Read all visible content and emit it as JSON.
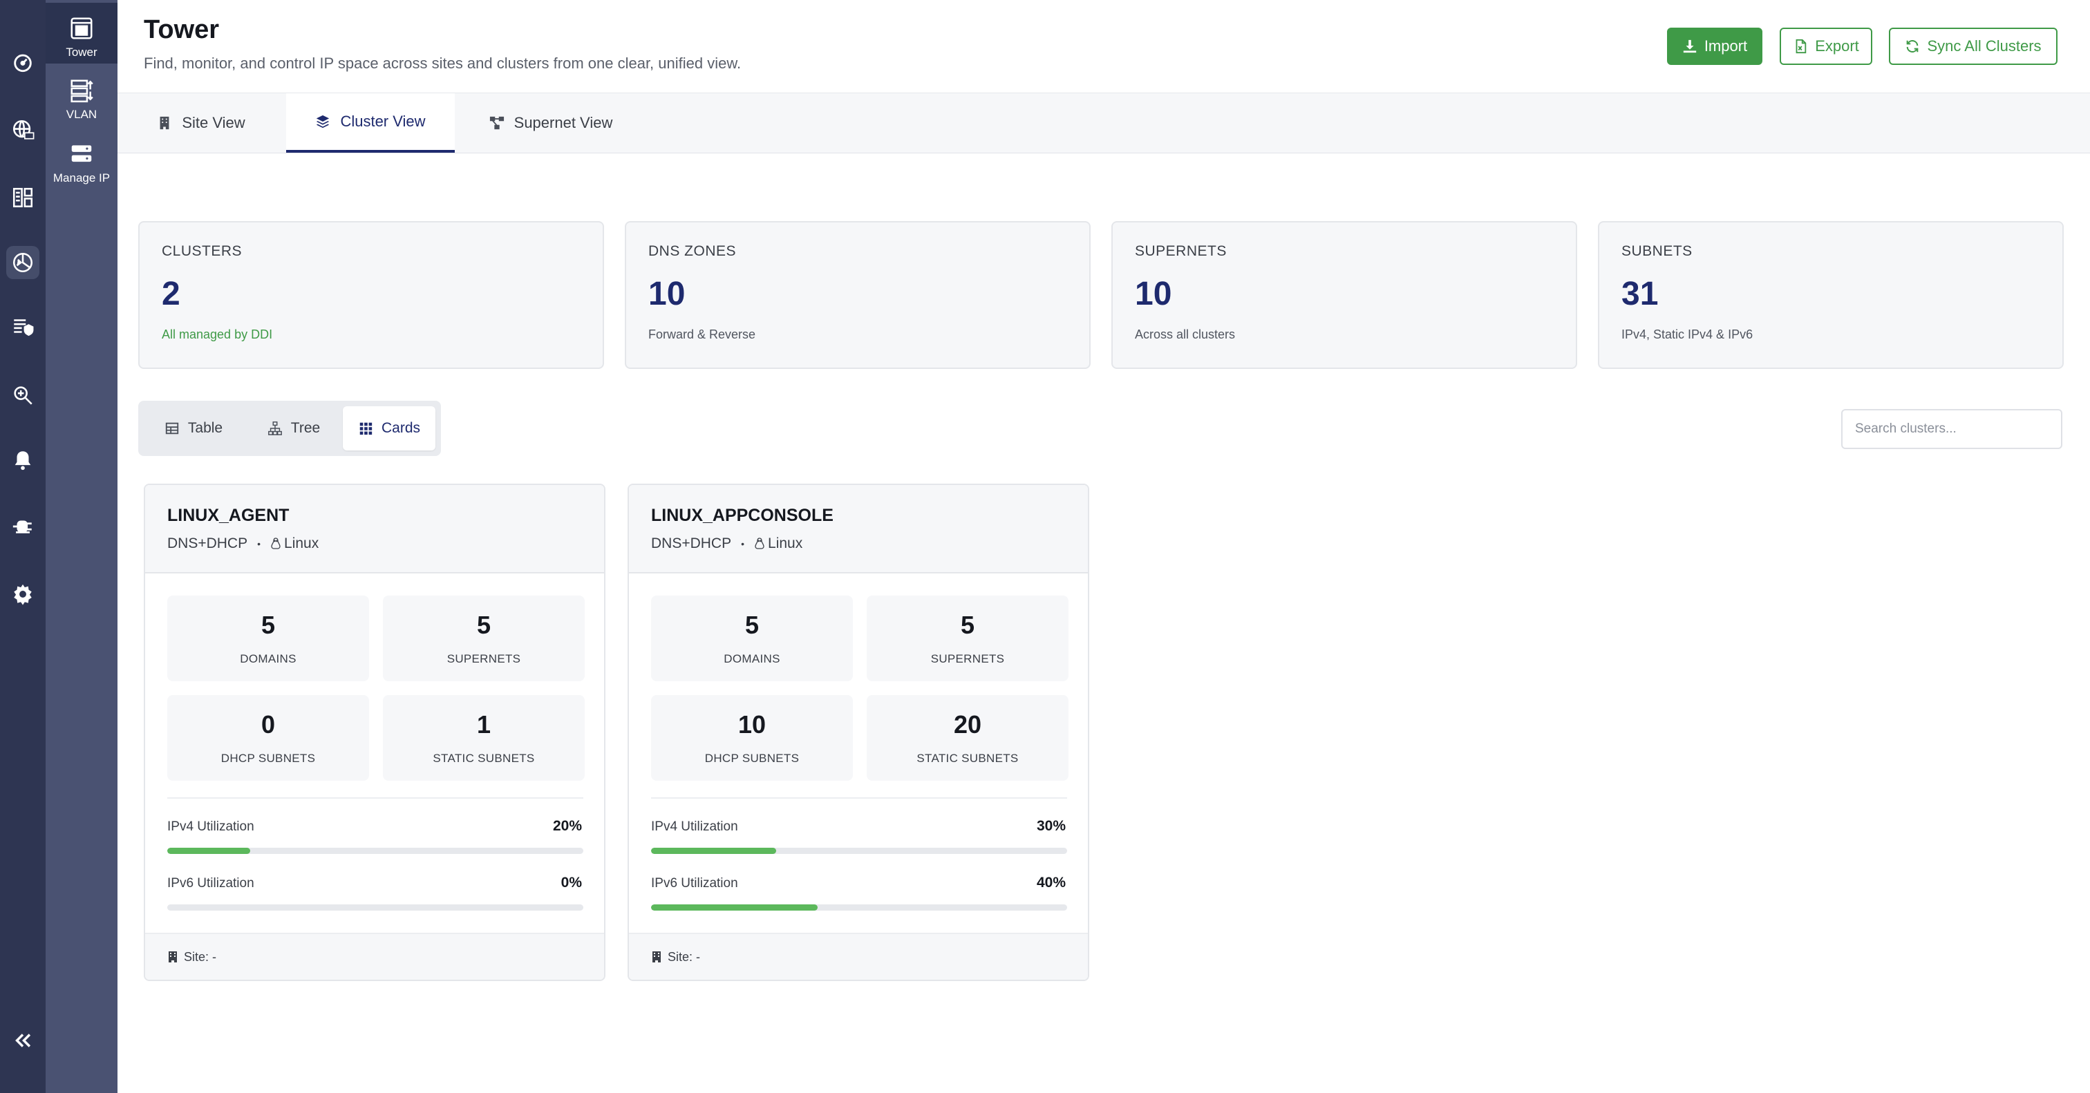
{
  "colors": {
    "rail": "#2e3552",
    "subnav": "#4a5272",
    "accent": "#1e2a6e",
    "success": "#3f9a47",
    "bar_fill": "#5cb85c"
  },
  "rail": {
    "icons": [
      "dashboard-icon",
      "dns-icon",
      "ipam-icon",
      "tower-icon",
      "security-icon",
      "discovery-icon",
      "alert-icon",
      "plugin-icon",
      "settings-icon",
      "collapse-icon"
    ]
  },
  "subnav": {
    "items": [
      {
        "label": "Tower",
        "icon": "tower-icon"
      },
      {
        "label": "VLAN",
        "icon": "vlan-icon"
      },
      {
        "label": "Manage IP",
        "icon": "server-icon"
      }
    ]
  },
  "header": {
    "title": "Tower",
    "subtitle": "Find, monitor, and control IP space across sites and clusters from one clear, unified view.",
    "import_label": "Import",
    "export_label": "Export",
    "sync_label": "Sync All Clusters"
  },
  "tabs": [
    {
      "label": "Site View"
    },
    {
      "label": "Cluster View"
    },
    {
      "label": "Supernet View"
    }
  ],
  "stats": [
    {
      "label": "CLUSTERS",
      "value": "2",
      "note": "All managed by DDI"
    },
    {
      "label": "DNS ZONES",
      "value": "10",
      "note": "Forward & Reverse"
    },
    {
      "label": "SUPERNETS",
      "value": "10",
      "note": "Across all clusters"
    },
    {
      "label": "SUBNETS",
      "value": "31",
      "note": "IPv4, Static IPv4 & IPv6"
    }
  ],
  "view_toggle": {
    "table": "Table",
    "tree": "Tree",
    "cards": "Cards",
    "selected": "Cards"
  },
  "search": {
    "placeholder": "Search clusters..."
  },
  "clusters": [
    {
      "name": "LINUX_AGENT",
      "type": "DNS+DHCP",
      "separator": "•",
      "os": "Linux",
      "domains": "5",
      "supernets": "5",
      "dhcp_subnets": "0",
      "static_subnets": "1",
      "domains_label": "DOMAINS",
      "supernets_label": "SUPERNETS",
      "dhcp_label": "DHCP SUBNETS",
      "static_label": "STATIC SUBNETS",
      "ipv4_label": "IPv4 Utilization",
      "ipv4_value": "20%",
      "ipv4_fraction": 0.2,
      "ipv6_label": "IPv6 Utilization",
      "ipv6_value": "0%",
      "ipv6_fraction": 0.0,
      "site": "Site: -"
    },
    {
      "name": "LINUX_APPCONSOLE",
      "type": "DNS+DHCP",
      "separator": "•",
      "os": "Linux",
      "domains": "5",
      "supernets": "5",
      "dhcp_subnets": "10",
      "static_subnets": "20",
      "domains_label": "DOMAINS",
      "supernets_label": "SUPERNETS",
      "dhcp_label": "DHCP SUBNETS",
      "static_label": "STATIC SUBNETS",
      "ipv4_label": "IPv4 Utilization",
      "ipv4_value": "30%",
      "ipv4_fraction": 0.3,
      "ipv6_label": "IPv6 Utilization",
      "ipv6_value": "40%",
      "ipv6_fraction": 0.4,
      "site": "Site: -"
    }
  ]
}
